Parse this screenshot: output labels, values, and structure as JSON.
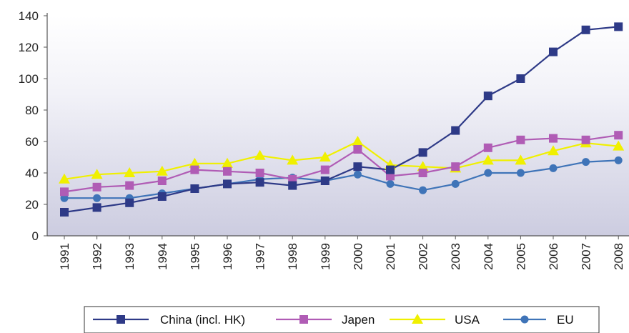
{
  "chart_data": {
    "type": "line",
    "title": "",
    "xlabel": "",
    "ylabel": "",
    "ylim": [
      0,
      140
    ],
    "yticks": [
      0,
      20,
      40,
      60,
      80,
      100,
      120,
      140
    ],
    "categories": [
      "1991",
      "1992",
      "1993",
      "1994",
      "1995",
      "1996",
      "1997",
      "1998",
      "1999",
      "2000",
      "2001",
      "2002",
      "2003",
      "2004",
      "2005",
      "2006",
      "2007",
      "2008"
    ],
    "grid": false,
    "legend_position": "bottom",
    "series": [
      {
        "name": "China (incl. HK)",
        "color": "#2e3a87",
        "marker": "square",
        "values": [
          15,
          18,
          21,
          25,
          30,
          33,
          34,
          32,
          35,
          44,
          42,
          53,
          67,
          89,
          100,
          117,
          131,
          133
        ]
      },
      {
        "name": "Japen",
        "color": "#b05cb5",
        "marker": "square",
        "values": [
          28,
          31,
          32,
          35,
          42,
          41,
          40,
          36,
          42,
          55,
          38,
          40,
          44,
          56,
          61,
          62,
          61,
          64
        ]
      },
      {
        "name": "USA",
        "color": "#f0f000",
        "marker": "triangle",
        "values": [
          36,
          39,
          40,
          41,
          46,
          46,
          51,
          48,
          50,
          60,
          45,
          44,
          43,
          48,
          48,
          54,
          59,
          57
        ]
      },
      {
        "name": "EU",
        "color": "#3f74b8",
        "marker": "circle",
        "values": [
          24,
          24,
          24,
          27,
          30,
          33,
          36,
          37,
          35,
          39,
          33,
          29,
          33,
          40,
          40,
          43,
          47,
          48
        ]
      }
    ]
  }
}
